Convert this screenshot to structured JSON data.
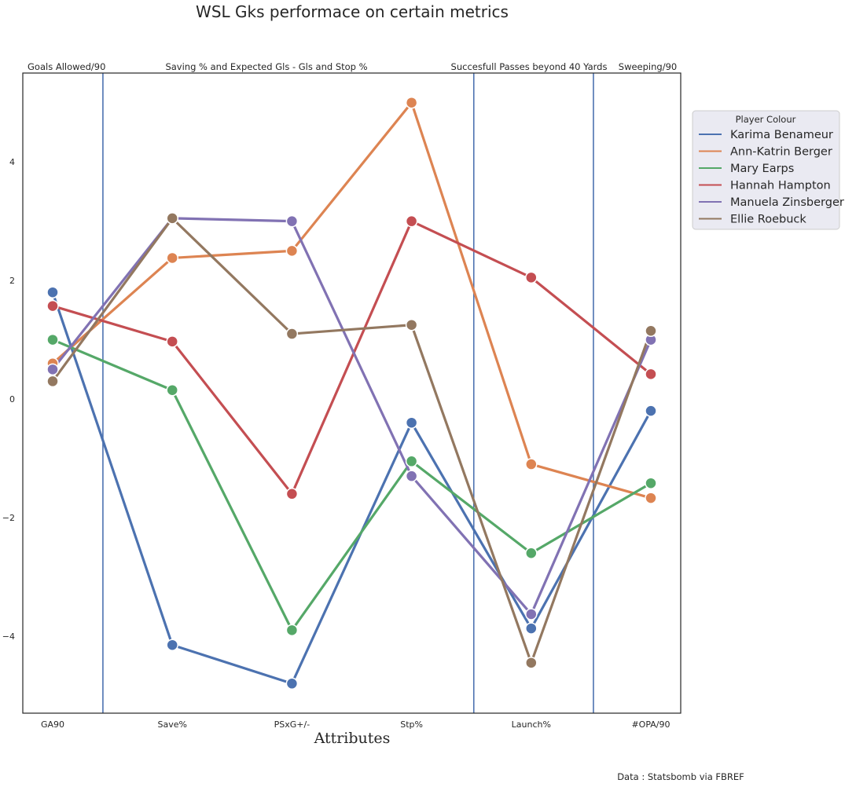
{
  "chart_data": {
    "type": "line",
    "title": "WSL Gks performace on certain metrics",
    "xlabel": "Attributes",
    "ylabel": "",
    "categories": [
      "GA90",
      "Save%",
      "PSxG+/-",
      "Stp%",
      "Launch%",
      "#OPA/90"
    ],
    "ylim": [
      -5.3,
      5.5
    ],
    "yticks": [
      -4,
      -2,
      0,
      2,
      4
    ],
    "grid": false,
    "legend": {
      "title": "Player Colour",
      "placement": "right, outside plot"
    },
    "sections": [
      {
        "label": "Goals Allowed/90"
      },
      {
        "label": "Saving % and Expected Gls - Gls and Stop %"
      },
      {
        "label": "Succesfull Passes beyond 40 Yards"
      },
      {
        "label": "Sweeping/90"
      }
    ],
    "section_dividers_after_category_index": [
      0.42,
      3.52,
      4.52
    ],
    "series": [
      {
        "name": "Karima Benameur",
        "color": "#4c72b0",
        "values": [
          1.8,
          -4.15,
          -4.8,
          -0.4,
          -3.87,
          -0.2
        ]
      },
      {
        "name": "Ann-Katrin Berger",
        "color": "#dd8452",
        "values": [
          0.6,
          2.38,
          2.5,
          5.0,
          -1.1,
          -1.67
        ]
      },
      {
        "name": "Mary Earps",
        "color": "#55a868",
        "values": [
          1.0,
          0.15,
          -3.9,
          -1.05,
          -2.6,
          -1.42
        ]
      },
      {
        "name": "Hannah Hampton",
        "color": "#c44e52",
        "values": [
          1.57,
          0.97,
          -1.6,
          3.0,
          2.05,
          0.42
        ]
      },
      {
        "name": "Manuela Zinsberger",
        "color": "#8172b3",
        "values": [
          0.5,
          3.05,
          3.0,
          -1.3,
          -3.63,
          1.0
        ]
      },
      {
        "name": "Ellie Roebuck",
        "color": "#937860",
        "values": [
          0.3,
          3.05,
          1.1,
          1.25,
          -4.45,
          1.15
        ]
      }
    ],
    "divider_color": "#4c72b0",
    "source": "Data : Statsbomb via FBREF"
  }
}
